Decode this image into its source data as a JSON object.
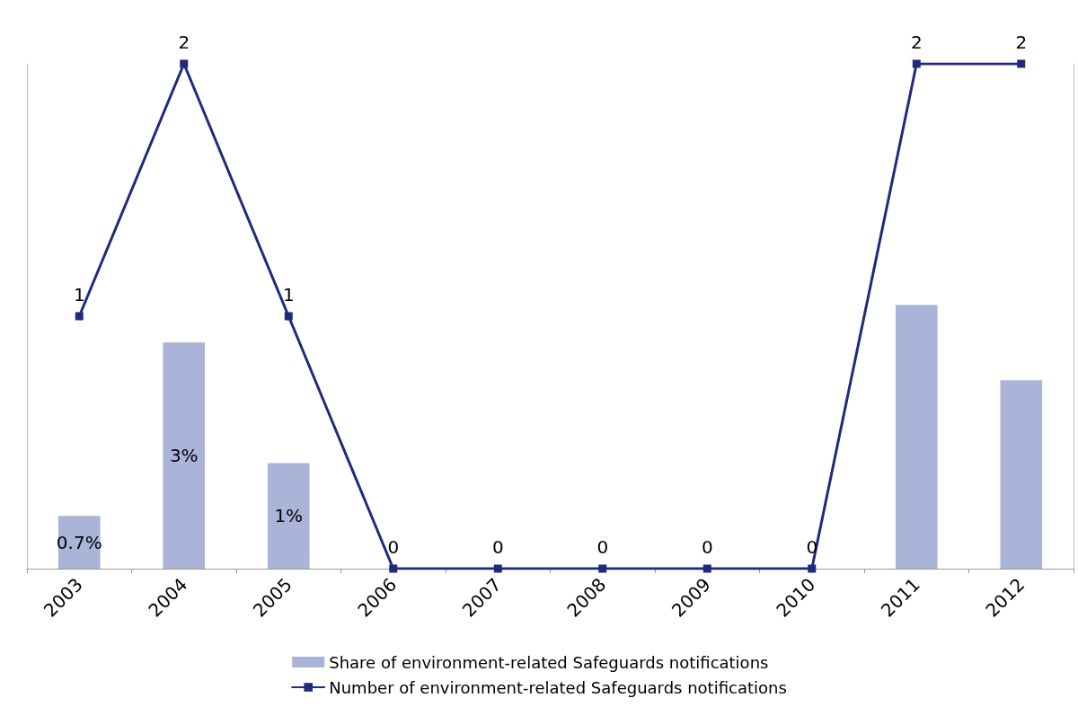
{
  "chart_data": {
    "type": "bar",
    "categories": [
      "2003",
      "2004",
      "2005",
      "2006",
      "2007",
      "2008",
      "2009",
      "2010",
      "2011",
      "2012"
    ],
    "series": [
      {
        "name": "Share of environment-related Safeguards notifications",
        "color": "#aab3d8",
        "values": [
          0.7,
          3,
          1.4,
          0,
          0,
          0,
          0,
          0,
          3.5,
          2.5
        ],
        "value_labels": [
          "0.7%",
          "3%",
          "1%",
          null,
          null,
          null,
          null,
          null,
          null,
          null
        ]
      },
      {
        "type": "line",
        "axis": "y2",
        "name": "Number of environment-related Safeguards notifications",
        "color": "#1f2a7c",
        "values": [
          1,
          2,
          1,
          0,
          0,
          0,
          0,
          0,
          2,
          2
        ],
        "value_labels": [
          "1",
          "2",
          "1",
          "0",
          "0",
          "0",
          "0",
          "0",
          "2",
          "2"
        ]
      }
    ],
    "ylim": [
      0,
      6.7
    ],
    "y2lim": [
      0,
      2
    ],
    "tick_labels": "x",
    "grid": false,
    "legend": "bottom",
    "marker": "square",
    "line_style": "solid"
  }
}
